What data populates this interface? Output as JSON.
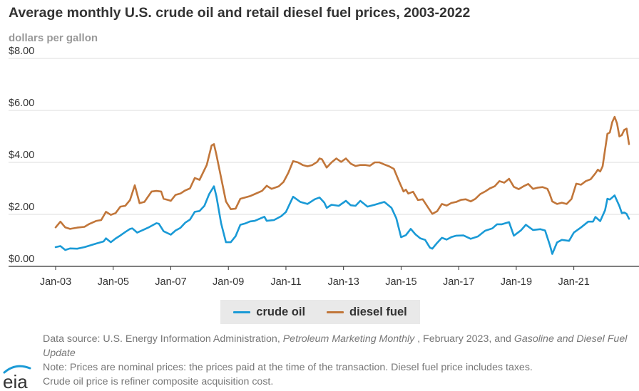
{
  "title": "Average monthly U.S. crude oil and retail diesel fuel prices, 2003-2022",
  "subtitle": "dollars per gallon",
  "legend": {
    "crude_label": "crude oil",
    "diesel_label": "diesel fuel"
  },
  "footnotes": {
    "source_prefix": "Data source: U.S. Energy Information Administration, ",
    "source_pub1": "Petroleum Marketing Monthly",
    "source_mid": " , February 2023, and ",
    "source_pub2": "Gasoline and Diesel Fuel Update",
    "note_line1": "Note: Prices are nominal prices: the prices paid at the time of the transaction. Diesel fuel price includes taxes.",
    "note_line2": "Crude oil price is refiner composite acquisition cost."
  },
  "logo_text": "eia",
  "colors": {
    "crude": "#1a9ad6",
    "diesel": "#c1763a",
    "grid": "#dddddd",
    "axis": "#333333"
  },
  "chart_data": {
    "type": "line",
    "ylim": [
      0,
      8
    ],
    "y_ticks": [
      "$0.00",
      "$2.00",
      "$4.00",
      "$6.00",
      "$8.00"
    ],
    "x_ticks": [
      "Jan-03",
      "Jan-05",
      "Jan-07",
      "Jan-09",
      "Jan-11",
      "Jan-13",
      "Jan-15",
      "Jan-17",
      "Jan-19",
      "Jan-21"
    ],
    "x_start": "Jan-03",
    "x_end": "Dec-22",
    "grid": true,
    "legend_position": "bottom",
    "series": [
      {
        "name": "crude oil",
        "color": "#1a9ad6",
        "points": [
          [
            "Jan-03",
            0.74
          ],
          [
            "Mar-03",
            0.78
          ],
          [
            "May-03",
            0.63
          ],
          [
            "Jul-03",
            0.69
          ],
          [
            "Oct-03",
            0.68
          ],
          [
            "Jan-04",
            0.74
          ],
          [
            "Jun-04",
            0.88
          ],
          [
            "Sep-04",
            0.96
          ],
          [
            "Oct-04",
            1.08
          ],
          [
            "Dec-04",
            0.93
          ],
          [
            "Feb-05",
            1.07
          ],
          [
            "Apr-05",
            1.19
          ],
          [
            "Jun-05",
            1.32
          ],
          [
            "Aug-05",
            1.44
          ],
          [
            "Sep-05",
            1.46
          ],
          [
            "Nov-05",
            1.3
          ],
          [
            "Jan-06",
            1.38
          ],
          [
            "Apr-06",
            1.51
          ],
          [
            "Jul-06",
            1.66
          ],
          [
            "Aug-06",
            1.64
          ],
          [
            "Oct-06",
            1.35
          ],
          [
            "Jan-07",
            1.22
          ],
          [
            "Mar-07",
            1.38
          ],
          [
            "May-07",
            1.48
          ],
          [
            "Jul-07",
            1.68
          ],
          [
            "Sep-07",
            1.8
          ],
          [
            "Nov-07",
            2.1
          ],
          [
            "Jan-08",
            2.13
          ],
          [
            "Mar-08",
            2.33
          ],
          [
            "May-08",
            2.78
          ],
          [
            "Jul-08",
            3.08
          ],
          [
            "Aug-08",
            2.7
          ],
          [
            "Oct-08",
            1.65
          ],
          [
            "Dec-08",
            0.93
          ],
          [
            "Feb-09",
            0.93
          ],
          [
            "Apr-09",
            1.16
          ],
          [
            "Jun-09",
            1.6
          ],
          [
            "Aug-09",
            1.65
          ],
          [
            "Oct-09",
            1.73
          ],
          [
            "Dec-09",
            1.75
          ],
          [
            "Apr-10",
            1.91
          ],
          [
            "May-10",
            1.75
          ],
          [
            "Aug-10",
            1.78
          ],
          [
            "Nov-10",
            1.93
          ],
          [
            "Jan-11",
            2.09
          ],
          [
            "Apr-11",
            2.68
          ],
          [
            "Jul-11",
            2.48
          ],
          [
            "Oct-11",
            2.4
          ],
          [
            "Jan-12",
            2.58
          ],
          [
            "Mar-12",
            2.65
          ],
          [
            "May-12",
            2.45
          ],
          [
            "Jun-12",
            2.25
          ],
          [
            "Aug-12",
            2.37
          ],
          [
            "Nov-12",
            2.33
          ],
          [
            "Feb-13",
            2.52
          ],
          [
            "Apr-13",
            2.35
          ],
          [
            "Jun-13",
            2.33
          ],
          [
            "Aug-13",
            2.52
          ],
          [
            "Nov-13",
            2.3
          ],
          [
            "Feb-14",
            2.37
          ],
          [
            "Jun-14",
            2.48
          ],
          [
            "Sep-14",
            2.25
          ],
          [
            "Nov-14",
            1.85
          ],
          [
            "Jan-15",
            1.12
          ],
          [
            "Mar-15",
            1.2
          ],
          [
            "May-15",
            1.44
          ],
          [
            "Jul-15",
            1.23
          ],
          [
            "Sep-15",
            1.08
          ],
          [
            "Nov-15",
            1.02
          ],
          [
            "Jan-16",
            0.72
          ],
          [
            "Feb-16",
            0.68
          ],
          [
            "Apr-16",
            0.9
          ],
          [
            "Jun-16",
            1.1
          ],
          [
            "Aug-16",
            1.03
          ],
          [
            "Oct-16",
            1.13
          ],
          [
            "Dec-16",
            1.18
          ],
          [
            "Mar-17",
            1.19
          ],
          [
            "Jun-17",
            1.06
          ],
          [
            "Sep-17",
            1.15
          ],
          [
            "Dec-17",
            1.37
          ],
          [
            "Mar-18",
            1.46
          ],
          [
            "May-18",
            1.62
          ],
          [
            "Jul-18",
            1.62
          ],
          [
            "Oct-18",
            1.7
          ],
          [
            "Dec-18",
            1.18
          ],
          [
            "Mar-19",
            1.39
          ],
          [
            "May-19",
            1.6
          ],
          [
            "Aug-19",
            1.4
          ],
          [
            "Nov-19",
            1.43
          ],
          [
            "Jan-20",
            1.38
          ],
          [
            "Mar-20",
            0.82
          ],
          [
            "Apr-20",
            0.48
          ],
          [
            "Jun-20",
            0.92
          ],
          [
            "Aug-20",
            1.02
          ],
          [
            "Nov-20",
            0.98
          ],
          [
            "Jan-21",
            1.3
          ],
          [
            "Apr-21",
            1.5
          ],
          [
            "Jul-21",
            1.72
          ],
          [
            "Sep-21",
            1.72
          ],
          [
            "Oct-21",
            1.9
          ],
          [
            "Dec-21",
            1.74
          ],
          [
            "Feb-22",
            2.16
          ],
          [
            "Mar-22",
            2.6
          ],
          [
            "Apr-22",
            2.57
          ],
          [
            "Jun-22",
            2.73
          ],
          [
            "Aug-22",
            2.32
          ],
          [
            "Sep-22",
            2.05
          ],
          [
            "Oct-22",
            2.07
          ],
          [
            "Nov-22",
            2.02
          ],
          [
            "Dec-22",
            1.83
          ]
        ]
      },
      {
        "name": "diesel fuel",
        "color": "#c1763a",
        "points": [
          [
            "Jan-03",
            1.5
          ],
          [
            "Mar-03",
            1.72
          ],
          [
            "May-03",
            1.5
          ],
          [
            "Jul-03",
            1.44
          ],
          [
            "Oct-03",
            1.49
          ],
          [
            "Jan-04",
            1.52
          ],
          [
            "Mar-04",
            1.63
          ],
          [
            "Jun-04",
            1.75
          ],
          [
            "Aug-04",
            1.78
          ],
          [
            "Oct-04",
            2.1
          ],
          [
            "Dec-04",
            1.98
          ],
          [
            "Feb-05",
            2.05
          ],
          [
            "Apr-05",
            2.3
          ],
          [
            "Jun-05",
            2.33
          ],
          [
            "Aug-05",
            2.55
          ],
          [
            "Oct-05",
            3.12
          ],
          [
            "Dec-05",
            2.43
          ],
          [
            "Feb-06",
            2.48
          ],
          [
            "May-06",
            2.88
          ],
          [
            "Jul-06",
            2.9
          ],
          [
            "Sep-06",
            2.88
          ],
          [
            "Oct-06",
            2.6
          ],
          [
            "Dec-06",
            2.55
          ],
          [
            "Jan-07",
            2.52
          ],
          [
            "Mar-07",
            2.75
          ],
          [
            "May-07",
            2.8
          ],
          [
            "Jul-07",
            2.92
          ],
          [
            "Sep-07",
            3.0
          ],
          [
            "Nov-07",
            3.4
          ],
          [
            "Jan-08",
            3.33
          ],
          [
            "Apr-08",
            3.9
          ],
          [
            "Jun-08",
            4.65
          ],
          [
            "Jul-08",
            4.7
          ],
          [
            "Aug-08",
            4.3
          ],
          [
            "Oct-08",
            3.4
          ],
          [
            "Dec-08",
            2.5
          ],
          [
            "Feb-09",
            2.2
          ],
          [
            "Apr-09",
            2.22
          ],
          [
            "Jun-09",
            2.6
          ],
          [
            "Aug-09",
            2.65
          ],
          [
            "Oct-09",
            2.7
          ],
          [
            "Dec-09",
            2.78
          ],
          [
            "Mar-10",
            2.9
          ],
          [
            "May-10",
            3.1
          ],
          [
            "Jul-10",
            2.98
          ],
          [
            "Oct-10",
            3.08
          ],
          [
            "Dec-10",
            3.25
          ],
          [
            "Feb-11",
            3.6
          ],
          [
            "Apr-11",
            4.05
          ],
          [
            "Jun-11",
            4.0
          ],
          [
            "Aug-11",
            3.9
          ],
          [
            "Oct-11",
            3.85
          ],
          [
            "Dec-11",
            3.9
          ],
          [
            "Feb-12",
            4.02
          ],
          [
            "Mar-12",
            4.15
          ],
          [
            "Apr-12",
            4.12
          ],
          [
            "Jun-12",
            3.8
          ],
          [
            "Aug-12",
            4.0
          ],
          [
            "Oct-12",
            4.15
          ],
          [
            "Dec-12",
            4.02
          ],
          [
            "Feb-13",
            4.15
          ],
          [
            "Apr-13",
            3.95
          ],
          [
            "Jun-13",
            3.86
          ],
          [
            "Aug-13",
            3.9
          ],
          [
            "Oct-13",
            3.9
          ],
          [
            "Dec-13",
            3.87
          ],
          [
            "Feb-14",
            4.0
          ],
          [
            "Apr-14",
            4.0
          ],
          [
            "Jun-14",
            3.92
          ],
          [
            "Aug-14",
            3.85
          ],
          [
            "Oct-14",
            3.75
          ],
          [
            "Dec-14",
            3.3
          ],
          [
            "Feb-15",
            2.88
          ],
          [
            "Mar-15",
            2.95
          ],
          [
            "Apr-15",
            2.8
          ],
          [
            "Jun-15",
            2.87
          ],
          [
            "Aug-15",
            2.55
          ],
          [
            "Oct-15",
            2.58
          ],
          [
            "Dec-15",
            2.3
          ],
          [
            "Feb-16",
            2.02
          ],
          [
            "Apr-16",
            2.12
          ],
          [
            "Jun-16",
            2.4
          ],
          [
            "Aug-16",
            2.34
          ],
          [
            "Oct-16",
            2.44
          ],
          [
            "Dec-16",
            2.48
          ],
          [
            "Feb-17",
            2.56
          ],
          [
            "Apr-17",
            2.58
          ],
          [
            "Jun-17",
            2.5
          ],
          [
            "Aug-17",
            2.6
          ],
          [
            "Oct-17",
            2.78
          ],
          [
            "Dec-17",
            2.88
          ],
          [
            "Feb-18",
            3.0
          ],
          [
            "Apr-18",
            3.08
          ],
          [
            "Jun-18",
            3.28
          ],
          [
            "Aug-18",
            3.22
          ],
          [
            "Oct-18",
            3.37
          ],
          [
            "Dec-18",
            3.06
          ],
          [
            "Feb-19",
            2.97
          ],
          [
            "Apr-19",
            3.08
          ],
          [
            "Jun-19",
            3.17
          ],
          [
            "Aug-19",
            2.98
          ],
          [
            "Oct-19",
            3.03
          ],
          [
            "Dec-19",
            3.05
          ],
          [
            "Feb-20",
            2.98
          ],
          [
            "Mar-20",
            2.77
          ],
          [
            "Apr-20",
            2.5
          ],
          [
            "Jun-20",
            2.4
          ],
          [
            "Aug-20",
            2.45
          ],
          [
            "Oct-20",
            2.4
          ],
          [
            "Dec-20",
            2.59
          ],
          [
            "Feb-21",
            3.18
          ],
          [
            "Apr-21",
            3.14
          ],
          [
            "Jun-21",
            3.28
          ],
          [
            "Aug-21",
            3.35
          ],
          [
            "Oct-21",
            3.58
          ],
          [
            "Nov-21",
            3.72
          ],
          [
            "Dec-21",
            3.65
          ],
          [
            "Jan-22",
            3.85
          ],
          [
            "Mar-22",
            5.1
          ],
          [
            "Apr-22",
            5.15
          ],
          [
            "May-22",
            5.55
          ],
          [
            "Jun-22",
            5.75
          ],
          [
            "Jul-22",
            5.5
          ],
          [
            "Aug-22",
            5.0
          ],
          [
            "Sep-22",
            5.05
          ],
          [
            "Oct-22",
            5.25
          ],
          [
            "Nov-22",
            5.3
          ],
          [
            "Dec-22",
            4.7
          ]
        ]
      }
    ]
  }
}
